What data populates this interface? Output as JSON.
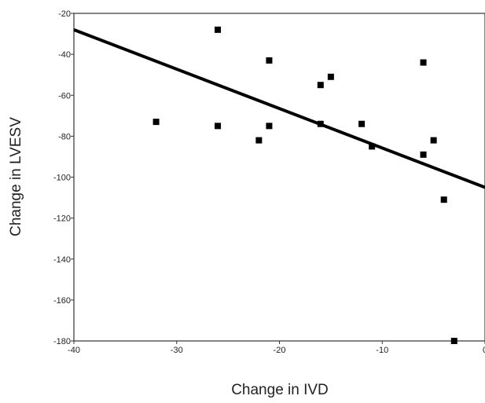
{
  "chart_data": {
    "type": "scatter",
    "title": "",
    "xlabel": "Change in IVD",
    "ylabel": "Change in LVESV",
    "xlim": [
      -40,
      0
    ],
    "ylim": [
      -180,
      -20
    ],
    "x_ticks": [
      -40,
      -30,
      -20,
      -10,
      0
    ],
    "y_ticks": [
      -20,
      -40,
      -60,
      -80,
      -100,
      -120,
      -140,
      -160,
      -180
    ],
    "x_tick_labels": [
      "-40",
      "-30",
      "-20",
      "-10",
      "0"
    ],
    "y_tick_labels": [
      "-20",
      "-40",
      "-60",
      "-80",
      "-100",
      "-120",
      "-140",
      "-160",
      "-180"
    ],
    "grid": false,
    "legend": "none",
    "points": [
      {
        "x": -32,
        "y": -73
      },
      {
        "x": -26,
        "y": -28
      },
      {
        "x": -26,
        "y": -75
      },
      {
        "x": -22,
        "y": -82
      },
      {
        "x": -21,
        "y": -43
      },
      {
        "x": -21,
        "y": -75
      },
      {
        "x": -16,
        "y": -55
      },
      {
        "x": -16,
        "y": -74
      },
      {
        "x": -15,
        "y": -51
      },
      {
        "x": -12,
        "y": -74
      },
      {
        "x": -11,
        "y": -85
      },
      {
        "x": -6,
        "y": -44
      },
      {
        "x": -6,
        "y": -89
      },
      {
        "x": -5,
        "y": -82
      },
      {
        "x": -4,
        "y": -111
      },
      {
        "x": -3,
        "y": -180
      }
    ],
    "fit_line": {
      "x": [
        -40,
        0
      ],
      "y": [
        -28,
        -105
      ]
    },
    "colors": {
      "points": "#000000",
      "line": "#000000",
      "axes": "#333333"
    }
  }
}
